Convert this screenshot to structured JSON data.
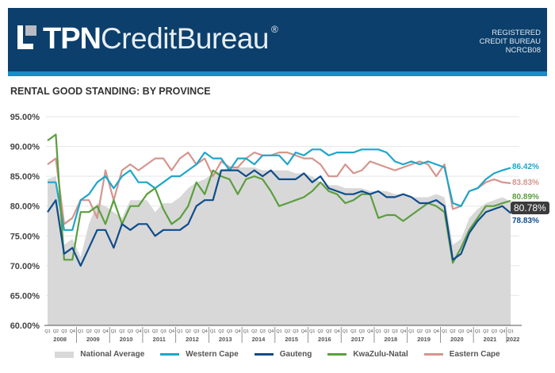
{
  "header": {
    "brand_bold": "TPN",
    "brand_light": "CreditBureau",
    "registered_mark": "®",
    "registration_lines": [
      "REGISTERED",
      "CREDIT BUREAU",
      "NCRCB08"
    ]
  },
  "colors": {
    "banner": "#0c3f6b",
    "strip": "#1a8cc8",
    "national_average": "#d8d8d8",
    "western_cape": "#1ea6c9",
    "gauteng": "#0f4c8a",
    "kwazulu_natal": "#5b9e3e",
    "eastern_cape": "#d4958e"
  },
  "end_labels": {
    "western_cape": "86.42%",
    "eastern_cape": "83.83%",
    "kwazulu_natal": "80.89%",
    "national_average": "80.78%",
    "gauteng": "78.83%"
  },
  "legend": [
    {
      "key": "national_average",
      "label": "National Average"
    },
    {
      "key": "western_cape",
      "label": "Western Cape"
    },
    {
      "key": "gauteng",
      "label": "Gauteng"
    },
    {
      "key": "kwazulu_natal",
      "label": "KwaZulu-Natal"
    },
    {
      "key": "eastern_cape",
      "label": "Eastern Cape"
    }
  ],
  "chart_data": {
    "type": "line",
    "title": "RENTAL GOOD STANDING: BY PROVINCE",
    "xlabel": "",
    "ylabel": "",
    "ylim": [
      60,
      95
    ],
    "yticks": [
      "60.00%",
      "65.00%",
      "70.00%",
      "75.00%",
      "80.00%",
      "85.00%",
      "90.00%",
      "95.00%"
    ],
    "grid": true,
    "legend_position": "bottom",
    "years": [
      "2008",
      "2009",
      "2010",
      "2011",
      "2012",
      "2013",
      "2014",
      "2015",
      "2016",
      "2017",
      "2018",
      "2019",
      "2020",
      "2021",
      "2022"
    ],
    "quarter_labels": [
      "Q1",
      "Q2",
      "Q3",
      "Q4"
    ],
    "x": [
      "2008Q1",
      "2008Q2",
      "2008Q3",
      "2008Q4",
      "2009Q1",
      "2009Q2",
      "2009Q3",
      "2009Q4",
      "2010Q1",
      "2010Q2",
      "2010Q3",
      "2010Q4",
      "2011Q1",
      "2011Q2",
      "2011Q3",
      "2011Q4",
      "2012Q1",
      "2012Q2",
      "2012Q3",
      "2012Q4",
      "2013Q1",
      "2013Q2",
      "2013Q3",
      "2013Q4",
      "2014Q1",
      "2014Q2",
      "2014Q3",
      "2014Q4",
      "2015Q1",
      "2015Q2",
      "2015Q3",
      "2015Q4",
      "2016Q1",
      "2016Q2",
      "2016Q3",
      "2016Q4",
      "2017Q1",
      "2017Q2",
      "2017Q3",
      "2017Q4",
      "2018Q1",
      "2018Q2",
      "2018Q3",
      "2018Q4",
      "2019Q1",
      "2019Q2",
      "2019Q3",
      "2019Q4",
      "2020Q1",
      "2020Q2",
      "2020Q3",
      "2020Q4",
      "2021Q1",
      "2021Q2",
      "2021Q3",
      "2021Q4",
      "2022Q1"
    ],
    "series": [
      {
        "name": "National Average",
        "type": "area",
        "values": [
          84.5,
          85.0,
          73.5,
          74.5,
          71.5,
          77.0,
          80.5,
          80.0,
          79.0,
          78.0,
          81.0,
          81.0,
          81.0,
          79.0,
          80.5,
          80.5,
          81.5,
          83.0,
          84.0,
          84.5,
          85.5,
          86.0,
          86.5,
          86.5,
          86.5,
          86.5,
          86.0,
          86.0,
          86.0,
          86.0,
          85.5,
          85.5,
          85.0,
          84.0,
          83.5,
          83.5,
          83.0,
          83.0,
          83.0,
          82.5,
          82.5,
          82.5,
          82.0,
          82.0,
          81.5,
          81.5,
          81.5,
          82.0,
          81.5,
          73.5,
          74.5,
          78.0,
          79.5,
          80.5,
          81.0,
          81.5,
          80.78
        ]
      },
      {
        "name": "Western Cape",
        "values": [
          84.0,
          84.0,
          76.0,
          76.0,
          81.0,
          82.0,
          84.0,
          85.0,
          83.0,
          85.0,
          86.0,
          84.0,
          84.0,
          83.0,
          84.0,
          85.0,
          85.0,
          86.0,
          87.0,
          89.0,
          88.0,
          88.0,
          86.0,
          88.0,
          88.0,
          87.0,
          88.5,
          88.5,
          88.5,
          87.0,
          89.0,
          88.5,
          89.5,
          89.5,
          88.5,
          89.0,
          89.0,
          89.0,
          89.5,
          89.5,
          89.5,
          89.0,
          87.5,
          87.0,
          87.5,
          87.0,
          87.5,
          87.0,
          86.5,
          80.5,
          80.0,
          82.5,
          83.0,
          84.5,
          85.5,
          86.0,
          86.42
        ]
      },
      {
        "name": "Gauteng",
        "values": [
          79.0,
          81.0,
          72.0,
          73.0,
          70.0,
          73.0,
          76.0,
          76.0,
          73.0,
          77.0,
          76.0,
          77.0,
          77.0,
          75.0,
          76.0,
          76.0,
          76.0,
          77.0,
          80.0,
          81.0,
          81.0,
          86.0,
          86.0,
          86.0,
          85.0,
          86.0,
          85.0,
          86.0,
          84.5,
          84.5,
          84.5,
          85.5,
          84.0,
          85.0,
          83.0,
          82.5,
          82.0,
          82.0,
          82.5,
          82.0,
          82.5,
          81.5,
          81.5,
          82.0,
          81.5,
          80.5,
          80.5,
          81.0,
          80.0,
          71.0,
          72.0,
          75.5,
          77.5,
          79.0,
          79.5,
          80.0,
          78.83
        ]
      },
      {
        "name": "KwaZulu-Natal",
        "values": [
          91.0,
          92.0,
          71.0,
          71.0,
          79.0,
          79.0,
          80.0,
          77.0,
          81.0,
          77.0,
          80.0,
          80.0,
          82.0,
          83.0,
          79.5,
          77.0,
          78.0,
          80.0,
          84.0,
          82.0,
          86.0,
          85.0,
          84.5,
          82.0,
          84.5,
          85.0,
          84.5,
          82.5,
          80.0,
          80.5,
          81.0,
          81.5,
          82.5,
          84.0,
          82.5,
          82.0,
          80.5,
          81.0,
          82.0,
          82.0,
          78.0,
          78.5,
          78.5,
          77.5,
          78.5,
          79.5,
          80.5,
          80.0,
          79.0,
          70.5,
          73.0,
          76.0,
          78.0,
          80.0,
          80.0,
          80.5,
          80.89
        ]
      },
      {
        "name": "Eastern Cape",
        "values": [
          87.0,
          88.0,
          77.0,
          78.0,
          81.0,
          81.0,
          78.0,
          86.0,
          81.0,
          86.0,
          87.0,
          86.0,
          87.0,
          88.0,
          88.0,
          86.0,
          88.0,
          89.0,
          87.0,
          88.0,
          85.0,
          87.5,
          86.5,
          86.5,
          88.0,
          89.0,
          88.5,
          88.5,
          89.0,
          89.0,
          88.5,
          88.0,
          88.0,
          87.0,
          85.0,
          85.0,
          87.0,
          85.5,
          86.0,
          87.5,
          87.0,
          86.5,
          86.0,
          86.5,
          87.0,
          87.5,
          87.0,
          85.0,
          87.0,
          79.5,
          80.0,
          82.5,
          83.0,
          84.0,
          84.5,
          84.0,
          83.83
        ]
      }
    ],
    "end_labels": [
      "86.42%",
      "83.83%",
      "80.89%",
      "80.78%",
      "78.83%"
    ]
  }
}
